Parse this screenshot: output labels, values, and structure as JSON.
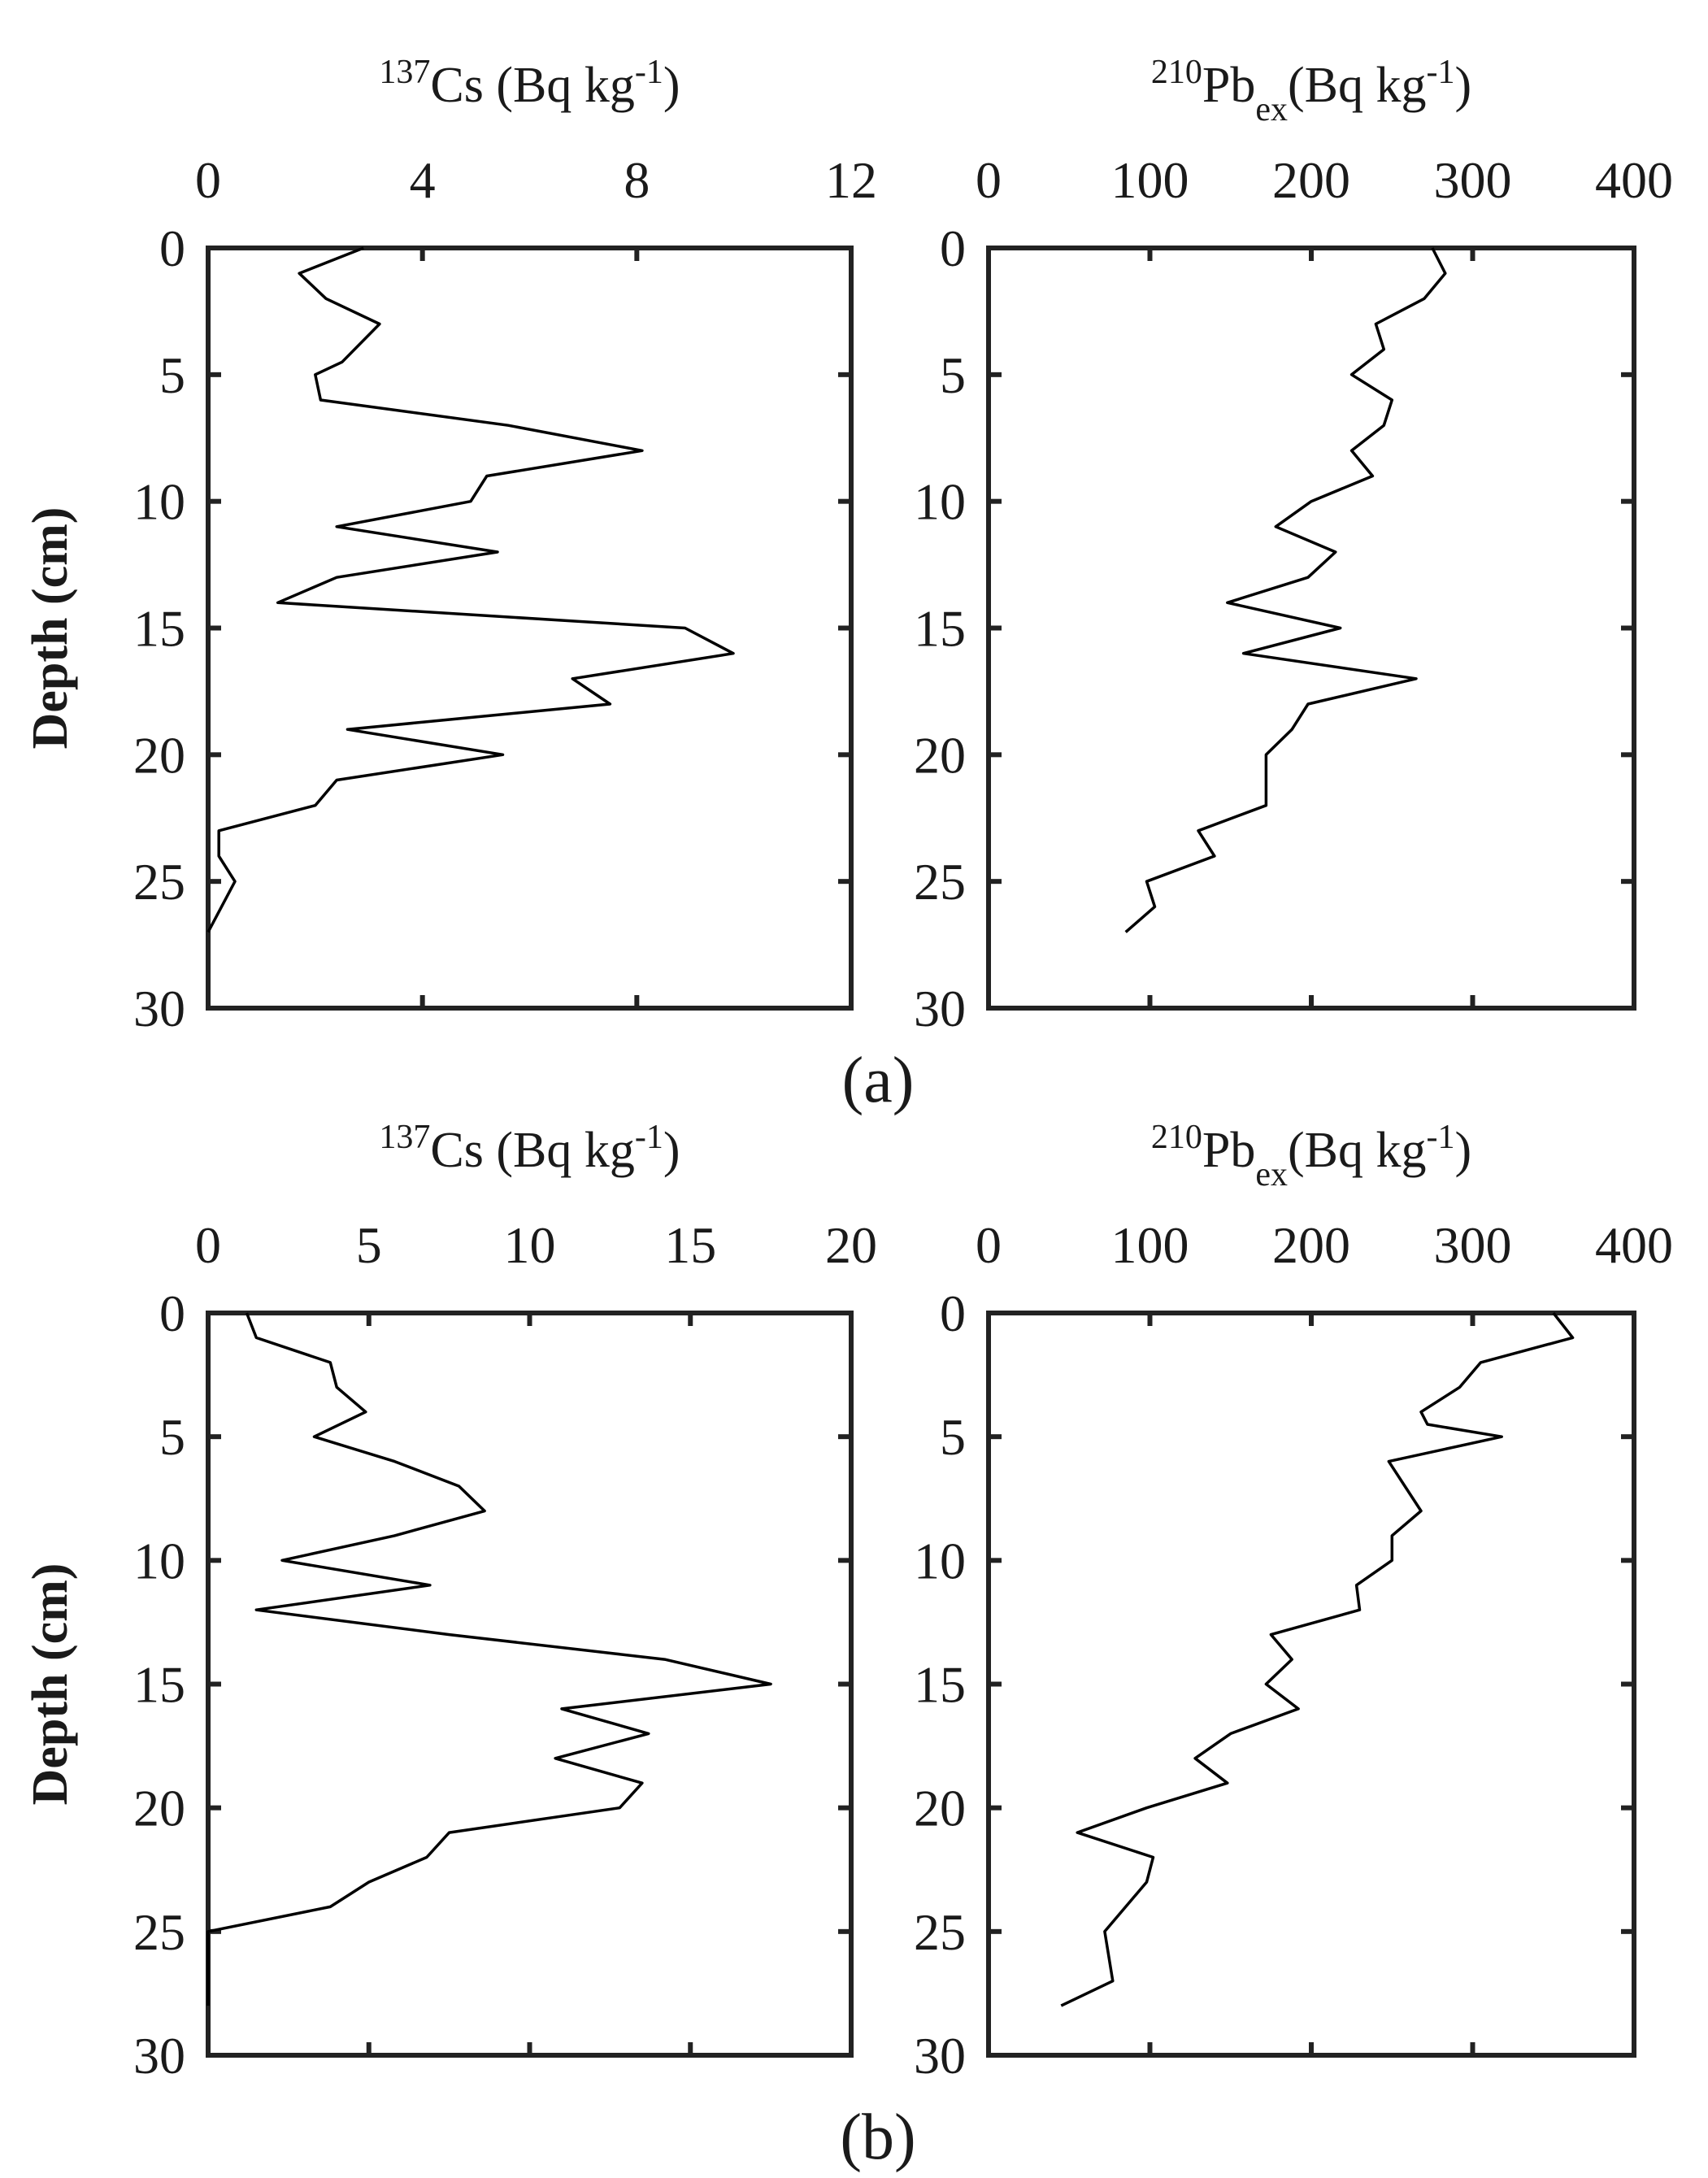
{
  "figure": {
    "panel_labels": [
      "(a)",
      "(b)"
    ],
    "colors": {
      "line": "#000000",
      "axis": "#222222",
      "background": "#ffffff"
    }
  },
  "chart_data": [
    {
      "type": "line",
      "panel": "(a)",
      "title_parts": {
        "sup": "137",
        "main": "Cs (Bq kg",
        "sup2": "-1",
        "end": ")"
      },
      "title": "137Cs (Bq kg-1)",
      "ylabel": "Depth (cm)",
      "xlim": [
        0,
        12
      ],
      "ylim": [
        0,
        30
      ],
      "xticks": [
        "0",
        "4",
        "8",
        "12"
      ],
      "yticks": [
        "0",
        "5",
        "10",
        "15",
        "20",
        "25",
        "30"
      ],
      "series": [
        {
          "name": "137Cs",
          "x": [
            2.9,
            1.7,
            2.2,
            3.2,
            2.5,
            2.0,
            2.1,
            5.6,
            8.1,
            5.2,
            4.9,
            2.4,
            5.4,
            2.4,
            1.3,
            8.9,
            9.8,
            6.8,
            7.5,
            2.6,
            5.5,
            2.4,
            2.0,
            0.2,
            0.2,
            0.5,
            0.0
          ],
          "depth": [
            0,
            1,
            2,
            3,
            4.5,
            5,
            6,
            7,
            8,
            9,
            10,
            11,
            12,
            13,
            14,
            15,
            16,
            17,
            18,
            19,
            20,
            21,
            22,
            23,
            24,
            25,
            27
          ]
        }
      ]
    },
    {
      "type": "line",
      "panel": "(a)",
      "title_parts": {
        "sup": "210",
        "main": "Pb",
        "sub": "ex",
        "rest": "(Bq kg",
        "sup2": "-1",
        "end": ")"
      },
      "title": "210Pbex(Bq kg-1)",
      "ylabel": "",
      "xlim": [
        0,
        400
      ],
      "ylim": [
        0,
        30
      ],
      "xticks": [
        "0",
        "100",
        "200",
        "300",
        "400"
      ],
      "yticks": [
        "0",
        "5",
        "10",
        "15",
        "20",
        "25",
        "30"
      ],
      "series": [
        {
          "name": "210Pbex",
          "x": [
            275,
            283,
            270,
            240,
            245,
            225,
            250,
            245,
            225,
            238,
            200,
            178,
            215,
            198,
            148,
            218,
            158,
            265,
            198,
            188,
            172,
            172,
            130,
            140,
            98,
            103,
            85
          ],
          "depth": [
            0,
            1,
            2,
            3,
            4,
            5,
            6,
            7,
            8,
            9,
            10,
            11,
            12,
            13,
            14,
            15,
            16,
            17,
            18,
            19,
            20,
            22,
            23,
            24,
            25,
            26,
            27
          ]
        }
      ]
    },
    {
      "type": "line",
      "panel": "(b)",
      "title_parts": {
        "sup": "137",
        "main": "Cs (Bq kg",
        "sup2": "-1",
        "end": ")"
      },
      "title": "137Cs (Bq kg-1)",
      "ylabel": "Depth (cm)",
      "xlim": [
        0,
        20
      ],
      "ylim": [
        0,
        30
      ],
      "xticks": [
        "0",
        "5",
        "10",
        "15",
        "20"
      ],
      "yticks": [
        "0",
        "5",
        "10",
        "15",
        "20",
        "25",
        "30"
      ],
      "series": [
        {
          "name": "137Cs",
          "x": [
            1.2,
            1.5,
            3.8,
            4.0,
            4.9,
            3.3,
            5.8,
            7.8,
            8.6,
            5.8,
            2.3,
            6.9,
            1.5,
            7.5,
            14.2,
            17.5,
            11.0,
            13.7,
            10.8,
            13.5,
            12.8,
            7.5,
            6.8,
            5.0,
            3.8,
            0.0,
            0.0
          ],
          "depth": [
            0,
            1,
            2,
            3,
            4,
            5,
            6,
            7,
            8,
            9,
            10,
            11,
            12,
            13,
            14,
            15,
            16,
            17,
            18,
            19,
            20,
            21,
            22,
            23,
            24,
            25,
            28
          ]
        }
      ]
    },
    {
      "type": "line",
      "panel": "(b)",
      "title_parts": {
        "sup": "210",
        "main": "Pb",
        "sub": "ex",
        "rest": "(Bq kg",
        "sup2": "-1",
        "end": ")"
      },
      "title": "210Pbex(Bq kg-1)",
      "ylabel": "",
      "xlim": [
        0,
        400
      ],
      "ylim": [
        0,
        30
      ],
      "xticks": [
        "0",
        "100",
        "200",
        "300",
        "400"
      ],
      "yticks": [
        "0",
        "5",
        "10",
        "15",
        "20",
        "25",
        "30"
      ],
      "series": [
        {
          "name": "210Pbex",
          "x": [
            350,
            362,
            305,
            292,
            268,
            272,
            318,
            248,
            258,
            268,
            250,
            250,
            228,
            230,
            175,
            188,
            172,
            192,
            150,
            128,
            148,
            98,
            55,
            102,
            98,
            72,
            77,
            45
          ],
          "depth": [
            0,
            1,
            2,
            3,
            4,
            4.5,
            5,
            6,
            7,
            8,
            9,
            10,
            11,
            12,
            13,
            14,
            15,
            16,
            17,
            18,
            19,
            20,
            21,
            22,
            23,
            25,
            27,
            28
          ]
        }
      ]
    }
  ]
}
